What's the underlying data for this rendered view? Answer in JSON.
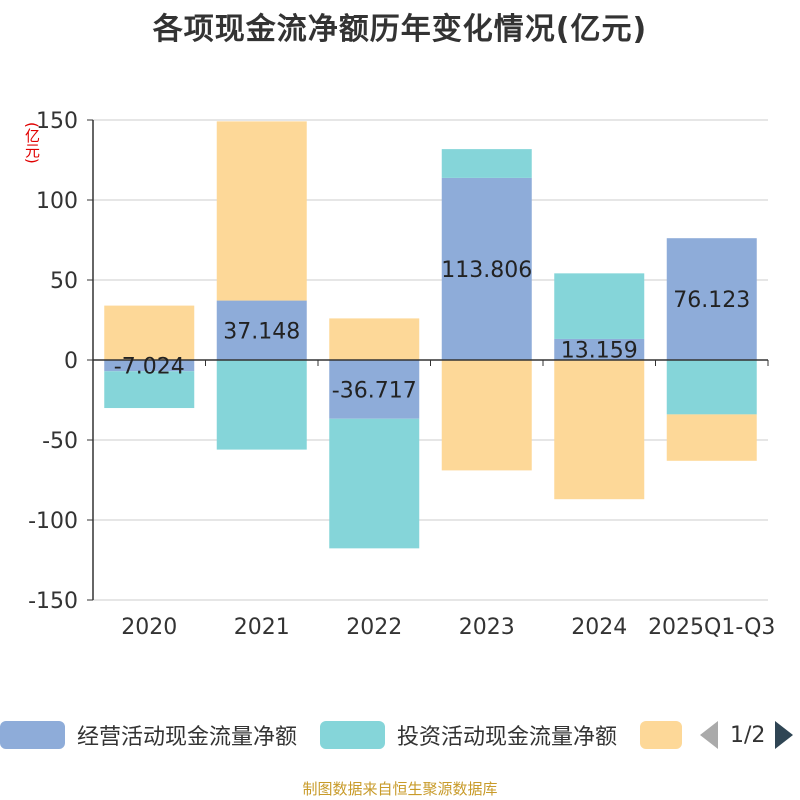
{
  "title": "各项现金流净额历年变化情况(亿元)",
  "unit_label": "(亿元)",
  "source": "制图数据来自恒生聚源数据库",
  "pager": {
    "text": "1/2"
  },
  "colors": {
    "operating": "#8eacd9",
    "investing": "#85d5d9",
    "financing": "#fdd898",
    "axis": "#333333",
    "grid": "#cccccc"
  },
  "chart_data": {
    "type": "bar",
    "stacked": true,
    "categories": [
      "2020",
      "2021",
      "2022",
      "2023",
      "2024",
      "2025Q1-Q3"
    ],
    "ylim": [
      -150,
      150
    ],
    "yticks": [
      150,
      100,
      50,
      0,
      -50,
      -100,
      -150
    ],
    "grid": true,
    "legend_position": "bottom",
    "series": [
      {
        "name": "经营活动现金流量净额",
        "color": "#8eacd9",
        "values": [
          -7.024,
          37.148,
          -36.717,
          113.806,
          13.159,
          76.123
        ],
        "labels": [
          "-7.024",
          "37.148",
          "-36.717",
          "113.806",
          "13.159",
          "76.123"
        ]
      },
      {
        "name": "投资活动现金流量净额",
        "color": "#85d5d9",
        "values": [
          -23,
          -56,
          -81,
          18,
          41,
          -34
        ]
      },
      {
        "name": "",
        "color": "#fdd898",
        "values": [
          34,
          112,
          26,
          -69,
          -87,
          -29
        ]
      }
    ]
  }
}
